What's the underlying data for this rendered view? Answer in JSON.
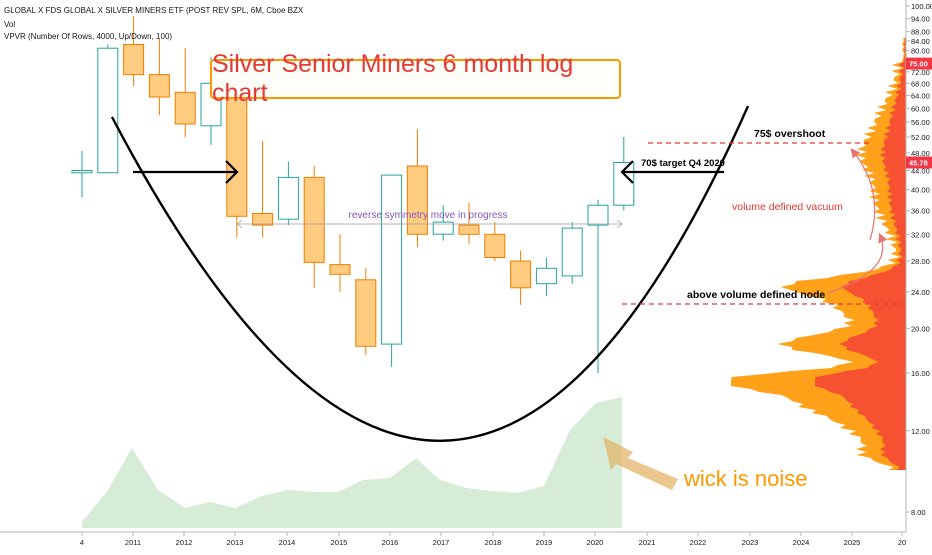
{
  "header": {
    "symbol_line": "GLOBAL X FDS GLOBAL X SILVER MINERS ETF (POST REV SPL, 6M, Cboe BZX",
    "vol_label": "Vol",
    "vpvr_label": "VPVR (Number Of Rows, 4000, Up/Down, 100)"
  },
  "colors": {
    "up_border": "#26a69a",
    "down_fill": "#ffcc80",
    "down_border": "#f57c00",
    "volume_area": "#c8e6c9",
    "vpvr_up": "#ff9800",
    "vpvr_down": "#f44336",
    "annotation_red": "#e53935",
    "reverse_text": "#7e57c2"
  },
  "chart_data": {
    "type": "candlestick",
    "title": "Silver Senior Miners 6 month log chart",
    "y_scale": "log",
    "ylim": [
      6.6,
      101
    ],
    "x_tick_labels": [
      "4",
      "2011",
      "2012",
      "2013",
      "2014",
      "2015",
      "2016",
      "2017",
      "2018",
      "2019",
      "2020",
      "2021",
      "2022",
      "2023",
      "2024",
      "2025",
      "20"
    ],
    "y_tick_labels": [
      "100.00",
      "94.00",
      "88.00",
      "84.00",
      "80.00",
      "76.00",
      "72.00",
      "68.00",
      "64.00",
      "60.00",
      "56.00",
      "52.00",
      "48.00",
      "44.00",
      "40.00",
      "36.00",
      "32.00",
      "28.00",
      "24.00",
      "20.00",
      "16.00",
      "12.00",
      "8.00"
    ],
    "y_tick_values": [
      100,
      94,
      88,
      84,
      80,
      76,
      72,
      68,
      64,
      60,
      56,
      52,
      48,
      44,
      40,
      36,
      32,
      28,
      24,
      20,
      16,
      12,
      8
    ],
    "price_tags": [
      {
        "label": "75.00",
        "value": 75.0
      },
      {
        "label": "45.78",
        "value": 45.78
      }
    ],
    "candles": [
      {
        "period": "2010 H1",
        "open": 43.5,
        "high": 48.5,
        "low": 38.5,
        "close": 44.0
      },
      {
        "period": "2010 H2",
        "open": 43.5,
        "high": 82.5,
        "low": 43.5,
        "close": 81.0
      },
      {
        "period": "2011 H1",
        "open": 82.5,
        "high": 95.0,
        "low": 67.0,
        "close": 71.0
      },
      {
        "period": "2011 H2",
        "open": 71.0,
        "high": 85.0,
        "low": 58.0,
        "close": 63.5
      },
      {
        "period": "2012 H1",
        "open": 65.0,
        "high": 81.0,
        "low": 52.0,
        "close": 55.5
      },
      {
        "period": "2012 H2",
        "open": 55.0,
        "high": 77.5,
        "low": 50.0,
        "close": 68.0
      },
      {
        "period": "2013 H1",
        "open": 70.5,
        "high": 70.5,
        "low": 31.5,
        "close": 35.0
      },
      {
        "period": "2013 H2",
        "open": 35.5,
        "high": 51.0,
        "low": 31.5,
        "close": 33.5
      },
      {
        "period": "2014 H1",
        "open": 34.5,
        "high": 46.0,
        "low": 33.5,
        "close": 42.5
      },
      {
        "period": "2014 H2",
        "open": 42.5,
        "high": 45.0,
        "low": 24.5,
        "close": 27.8
      },
      {
        "period": "2015 H1",
        "open": 27.5,
        "high": 32.0,
        "low": 24.0,
        "close": 26.2
      },
      {
        "period": "2015 H2",
        "open": 25.5,
        "high": 27.0,
        "low": 17.5,
        "close": 18.3
      },
      {
        "period": "2016 H1",
        "open": 18.5,
        "high": 43.0,
        "low": 16.5,
        "close": 43.0
      },
      {
        "period": "2016 H2",
        "open": 45.0,
        "high": 54.0,
        "low": 30.0,
        "close": 32.0
      },
      {
        "period": "2017 H1",
        "open": 32.0,
        "high": 37.0,
        "low": 31.0,
        "close": 34.0
      },
      {
        "period": "2017 H2",
        "open": 33.5,
        "high": 37.5,
        "low": 30.5,
        "close": 32.0
      },
      {
        "period": "2018 H1",
        "open": 32.0,
        "high": 34.0,
        "low": 28.0,
        "close": 28.5
      },
      {
        "period": "2018 H2",
        "open": 28.0,
        "high": 29.5,
        "low": 22.5,
        "close": 24.5
      },
      {
        "period": "2019 H1",
        "open": 25.0,
        "high": 28.5,
        "low": 23.5,
        "close": 27.0
      },
      {
        "period": "2019 H2",
        "open": 26.0,
        "high": 34.0,
        "low": 25.0,
        "close": 33.0
      },
      {
        "period": "2020 H1",
        "open": 33.5,
        "high": 38.0,
        "low": 16.0,
        "close": 37.0
      },
      {
        "period": "2020 H2",
        "open": 37.0,
        "high": 52.0,
        "low": 36.0,
        "close": 45.78
      }
    ],
    "volume_profile_note": "VPVR histogram on right side, heaviest volume between 24 and 48",
    "annotations": [
      {
        "text": "reverse symmetry move in progress"
      },
      {
        "text": "75$ overshoot"
      },
      {
        "text": "70$ target Q4 2020"
      },
      {
        "text": "volume defined vacuum"
      },
      {
        "text": "above volume defined node"
      },
      {
        "text": "wick is noise"
      }
    ],
    "levels": [
      75.0,
      45.78
    ],
    "grid": false,
    "legend": "none"
  }
}
